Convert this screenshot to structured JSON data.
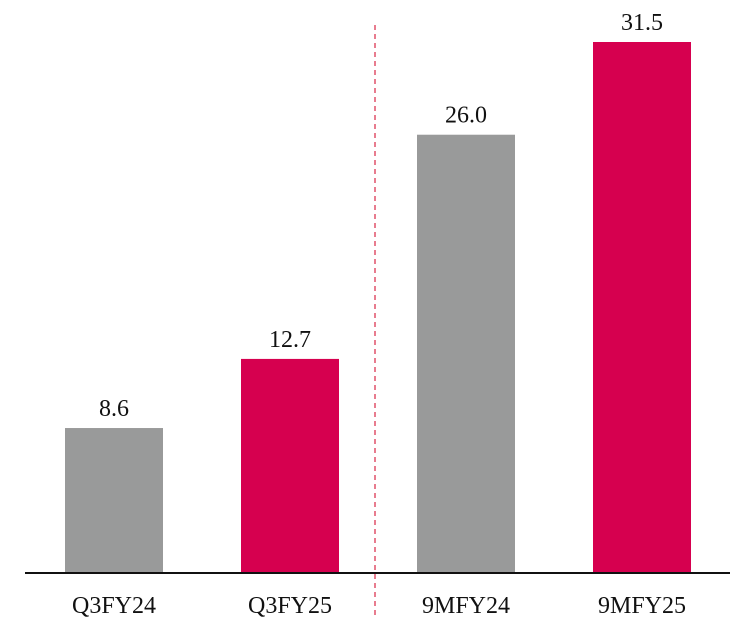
{
  "chart_data": {
    "type": "bar",
    "categories": [
      "Q3FY24",
      "Q3FY25",
      "9MFY24",
      "9MFY25"
    ],
    "values": [
      8.6,
      12.7,
      26.0,
      31.5
    ],
    "value_labels": [
      "8.6",
      "12.7",
      "26.0",
      "31.5"
    ],
    "colors": [
      "#999a9a",
      "#d6004f",
      "#999a9a",
      "#d6004f"
    ]
  }
}
